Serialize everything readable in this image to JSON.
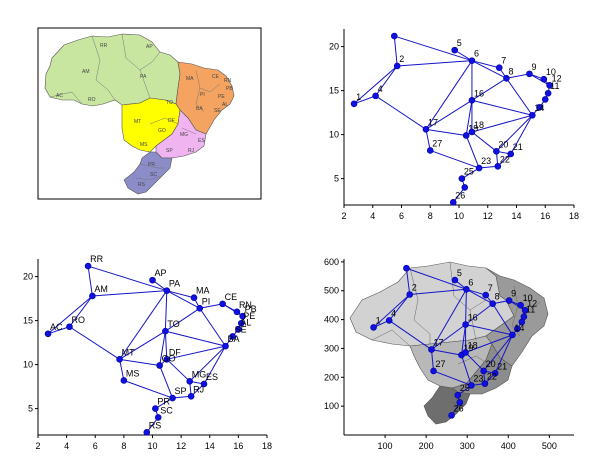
{
  "chart_data": [
    {
      "type": "map",
      "title": "",
      "map_labels": [
        "AM",
        "PA",
        "RR",
        "AP",
        "AC",
        "RO",
        "MT",
        "TO",
        "MA",
        "PI",
        "CE",
        "RN",
        "PB",
        "PE",
        "AL",
        "SE",
        "BA",
        "GO",
        "DF",
        "MS",
        "MG",
        "ES",
        "RJ",
        "SP",
        "PR",
        "SC",
        "RS"
      ],
      "region_colors": {
        "north": "#c8e6a0",
        "northeast": "#f4a460",
        "center_west": "#ffff00",
        "southeast": "#f0b4f0",
        "south": "#8c8cc8"
      }
    },
    {
      "type": "scatter",
      "subtype": "network-graph",
      "title": "",
      "xlabel": "",
      "ylabel": "",
      "xlim": [
        2,
        18
      ],
      "ylim": [
        2,
        22
      ],
      "xticks": [
        2,
        4,
        6,
        8,
        10,
        12,
        14,
        16,
        18
      ],
      "yticks": [
        5,
        10,
        15,
        20
      ],
      "nodes": [
        {
          "label": "1",
          "x": 2.7,
          "y": 13.5
        },
        {
          "label": "2",
          "x": 5.7,
          "y": 17.8
        },
        {
          "label": "",
          "x": 5.5,
          "y": 21.2
        },
        {
          "label": "4",
          "x": 4.2,
          "y": 14.4
        },
        {
          "label": "5",
          "x": 9.7,
          "y": 19.6
        },
        {
          "label": "6",
          "x": 10.9,
          "y": 18.4
        },
        {
          "label": "7",
          "x": 12.8,
          "y": 17.6
        },
        {
          "label": "8",
          "x": 13.3,
          "y": 16.4
        },
        {
          "label": "9",
          "x": 14.9,
          "y": 16.9
        },
        {
          "label": "10",
          "x": 15.9,
          "y": 16.3
        },
        {
          "label": "12",
          "x": 16.3,
          "y": 15.6
        },
        {
          "label": "11",
          "x": 16.2,
          "y": 14.7
        },
        {
          "label": "",
          "x": 16.0,
          "y": 14.0
        },
        {
          "label": "",
          "x": 15.6,
          "y": 13.1
        },
        {
          "label": "14",
          "x": 15.1,
          "y": 12.2
        },
        {
          "label": "16",
          "x": 10.9,
          "y": 13.9
        },
        {
          "label": "17",
          "x": 7.7,
          "y": 10.6
        },
        {
          "label": "19",
          "x": 10.5,
          "y": 9.9
        },
        {
          "label": "18",
          "x": 10.9,
          "y": 10.3
        },
        {
          "label": "27",
          "x": 8.0,
          "y": 8.2
        },
        {
          "label": "20",
          "x": 12.6,
          "y": 8.1
        },
        {
          "label": "21",
          "x": 13.6,
          "y": 7.8
        },
        {
          "label": "22",
          "x": 12.7,
          "y": 6.4
        },
        {
          "label": "23",
          "x": 11.4,
          "y": 6.2
        },
        {
          "label": "25",
          "x": 10.2,
          "y": 5.0
        },
        {
          "label": "",
          "x": 10.4,
          "y": 4.0
        },
        {
          "label": "26",
          "x": 9.6,
          "y": 2.3
        }
      ],
      "edges": [
        [
          0,
          1
        ],
        [
          0,
          3
        ],
        [
          1,
          2
        ],
        [
          1,
          3
        ],
        [
          1,
          5
        ],
        [
          2,
          5
        ],
        [
          4,
          5
        ],
        [
          5,
          6
        ],
        [
          5,
          7
        ],
        [
          5,
          15
        ],
        [
          5,
          16
        ],
        [
          6,
          7
        ],
        [
          7,
          8
        ],
        [
          7,
          14
        ],
        [
          8,
          9
        ],
        [
          8,
          10
        ],
        [
          9,
          10
        ],
        [
          10,
          11
        ],
        [
          11,
          12
        ],
        [
          12,
          13
        ],
        [
          13,
          14
        ],
        [
          7,
          15
        ],
        [
          14,
          15
        ],
        [
          15,
          16
        ],
        [
          15,
          17
        ],
        [
          15,
          18
        ],
        [
          3,
          16
        ],
        [
          16,
          19
        ],
        [
          16,
          17
        ],
        [
          17,
          18
        ],
        [
          18,
          14
        ],
        [
          19,
          23
        ],
        [
          17,
          23
        ],
        [
          18,
          20
        ],
        [
          14,
          20
        ],
        [
          20,
          21
        ],
        [
          21,
          14
        ],
        [
          20,
          22
        ],
        [
          21,
          22
        ],
        [
          22,
          23
        ],
        [
          23,
          24
        ],
        [
          24,
          25
        ],
        [
          25,
          26
        ]
      ]
    },
    {
      "type": "scatter",
      "subtype": "network-graph",
      "title": "",
      "xlabel": "",
      "ylabel": "",
      "xlim": [
        2,
        18
      ],
      "ylim": [
        2,
        22
      ],
      "xticks": [
        2,
        4,
        6,
        8,
        10,
        12,
        14,
        16,
        18
      ],
      "yticks": [
        5,
        10,
        15,
        20
      ],
      "nodes": [
        {
          "label": "RR",
          "x": 5.5,
          "y": 21.2
        },
        {
          "label": "AP",
          "x": 10.0,
          "y": 19.6
        },
        {
          "label": "PA",
          "x": 11.0,
          "y": 18.4
        },
        {
          "label": "AM",
          "x": 5.8,
          "y": 17.8
        },
        {
          "label": "AC",
          "x": 2.7,
          "y": 13.5
        },
        {
          "label": "RO",
          "x": 4.2,
          "y": 14.3
        },
        {
          "label": "MA",
          "x": 12.9,
          "y": 17.6
        },
        {
          "label": "PI",
          "x": 13.3,
          "y": 16.4
        },
        {
          "label": "CE",
          "x": 14.9,
          "y": 16.9
        },
        {
          "label": "RN",
          "x": 15.9,
          "y": 16.0
        },
        {
          "label": "PB",
          "x": 16.3,
          "y": 15.5
        },
        {
          "label": "PE",
          "x": 16.2,
          "y": 14.7
        },
        {
          "label": "AL",
          "x": 16.0,
          "y": 14.0
        },
        {
          "label": "SE",
          "x": 15.6,
          "y": 13.2
        },
        {
          "label": "BA",
          "x": 15.1,
          "y": 12.1
        },
        {
          "label": "TO",
          "x": 10.9,
          "y": 13.8
        },
        {
          "label": "MT",
          "x": 7.7,
          "y": 10.6
        },
        {
          "label": "DF",
          "x": 11.0,
          "y": 10.6
        },
        {
          "label": "GO",
          "x": 10.5,
          "y": 9.9
        },
        {
          "label": "MS",
          "x": 8.0,
          "y": 8.2
        },
        {
          "label": "MG",
          "x": 12.6,
          "y": 8.1
        },
        {
          "label": "ES",
          "x": 13.6,
          "y": 7.8
        },
        {
          "label": "RJ",
          "x": 12.7,
          "y": 6.4
        },
        {
          "label": "SP",
          "x": 11.4,
          "y": 6.2
        },
        {
          "label": "PR",
          "x": 10.2,
          "y": 5.0
        },
        {
          "label": "SC",
          "x": 10.4,
          "y": 4.0
        },
        {
          "label": "RS",
          "x": 9.6,
          "y": 2.3
        }
      ],
      "edges": [
        [
          4,
          5
        ],
        [
          4,
          3
        ],
        [
          3,
          0
        ],
        [
          3,
          2
        ],
        [
          3,
          5
        ],
        [
          0,
          2
        ],
        [
          1,
          2
        ],
        [
          2,
          6
        ],
        [
          2,
          7
        ],
        [
          2,
          15
        ],
        [
          2,
          16
        ],
        [
          6,
          7
        ],
        [
          7,
          8
        ],
        [
          7,
          14
        ],
        [
          8,
          9
        ],
        [
          8,
          10
        ],
        [
          9,
          10
        ],
        [
          10,
          11
        ],
        [
          11,
          12
        ],
        [
          12,
          13
        ],
        [
          13,
          14
        ],
        [
          7,
          15
        ],
        [
          14,
          15
        ],
        [
          15,
          16
        ],
        [
          15,
          17
        ],
        [
          15,
          18
        ],
        [
          5,
          16
        ],
        [
          16,
          19
        ],
        [
          16,
          18
        ],
        [
          17,
          18
        ],
        [
          17,
          14
        ],
        [
          19,
          23
        ],
        [
          18,
          23
        ],
        [
          17,
          20
        ],
        [
          14,
          20
        ],
        [
          20,
          21
        ],
        [
          21,
          14
        ],
        [
          20,
          22
        ],
        [
          21,
          22
        ],
        [
          22,
          23
        ],
        [
          23,
          24
        ],
        [
          24,
          25
        ],
        [
          25,
          26
        ]
      ]
    },
    {
      "type": "scatter",
      "subtype": "network-graph-over-map",
      "title": "",
      "xlabel": "",
      "ylabel": "",
      "xlim": [
        0,
        560
      ],
      "ylim": [
        0,
        610
      ],
      "xticks": [
        100,
        200,
        300,
        400,
        500
      ],
      "yticks": [
        100,
        200,
        300,
        400,
        500,
        600
      ],
      "nodes": [
        {
          "label": "1",
          "x": 72,
          "y": 373
        },
        {
          "label": "2",
          "x": 160,
          "y": 487
        },
        {
          "label": "",
          "x": 152,
          "y": 578
        },
        {
          "label": "4",
          "x": 110,
          "y": 397
        },
        {
          "label": "5",
          "x": 270,
          "y": 537
        },
        {
          "label": "6",
          "x": 298,
          "y": 505
        },
        {
          "label": "7",
          "x": 345,
          "y": 485
        },
        {
          "label": "8",
          "x": 362,
          "y": 455
        },
        {
          "label": "9",
          "x": 402,
          "y": 466
        },
        {
          "label": "10",
          "x": 430,
          "y": 450
        },
        {
          "label": "12",
          "x": 441,
          "y": 432
        },
        {
          "label": "11",
          "x": 438,
          "y": 410
        },
        {
          "label": "",
          "x": 433,
          "y": 392
        },
        {
          "label": "",
          "x": 422,
          "y": 368
        },
        {
          "label": "14",
          "x": 410,
          "y": 347
        },
        {
          "label": "16",
          "x": 296,
          "y": 383
        },
        {
          "label": "17",
          "x": 213,
          "y": 296
        },
        {
          "label": "19",
          "x": 286,
          "y": 277
        },
        {
          "label": "18",
          "x": 296,
          "y": 286
        },
        {
          "label": "27",
          "x": 218,
          "y": 222
        },
        {
          "label": "20",
          "x": 340,
          "y": 222
        },
        {
          "label": "21",
          "x": 368,
          "y": 214
        },
        {
          "label": "22",
          "x": 343,
          "y": 178
        },
        {
          "label": "23",
          "x": 310,
          "y": 172
        },
        {
          "label": "25",
          "x": 277,
          "y": 138
        },
        {
          "label": "",
          "x": 282,
          "y": 113
        },
        {
          "label": "26",
          "x": 262,
          "y": 68
        }
      ],
      "edges": [
        [
          0,
          1
        ],
        [
          0,
          3
        ],
        [
          1,
          2
        ],
        [
          1,
          3
        ],
        [
          1,
          5
        ],
        [
          2,
          5
        ],
        [
          4,
          5
        ],
        [
          5,
          6
        ],
        [
          5,
          7
        ],
        [
          5,
          15
        ],
        [
          5,
          16
        ],
        [
          6,
          7
        ],
        [
          7,
          8
        ],
        [
          7,
          14
        ],
        [
          8,
          9
        ],
        [
          8,
          10
        ],
        [
          9,
          10
        ],
        [
          10,
          11
        ],
        [
          11,
          12
        ],
        [
          12,
          13
        ],
        [
          13,
          14
        ],
        [
          7,
          15
        ],
        [
          14,
          15
        ],
        [
          15,
          16
        ],
        [
          15,
          17
        ],
        [
          15,
          18
        ],
        [
          3,
          16
        ],
        [
          16,
          19
        ],
        [
          16,
          17
        ],
        [
          17,
          18
        ],
        [
          18,
          14
        ],
        [
          19,
          23
        ],
        [
          17,
          23
        ],
        [
          18,
          20
        ],
        [
          14,
          20
        ],
        [
          20,
          21
        ],
        [
          21,
          14
        ],
        [
          20,
          22
        ],
        [
          21,
          22
        ],
        [
          22,
          23
        ],
        [
          23,
          24
        ],
        [
          24,
          25
        ],
        [
          25,
          26
        ]
      ]
    }
  ]
}
